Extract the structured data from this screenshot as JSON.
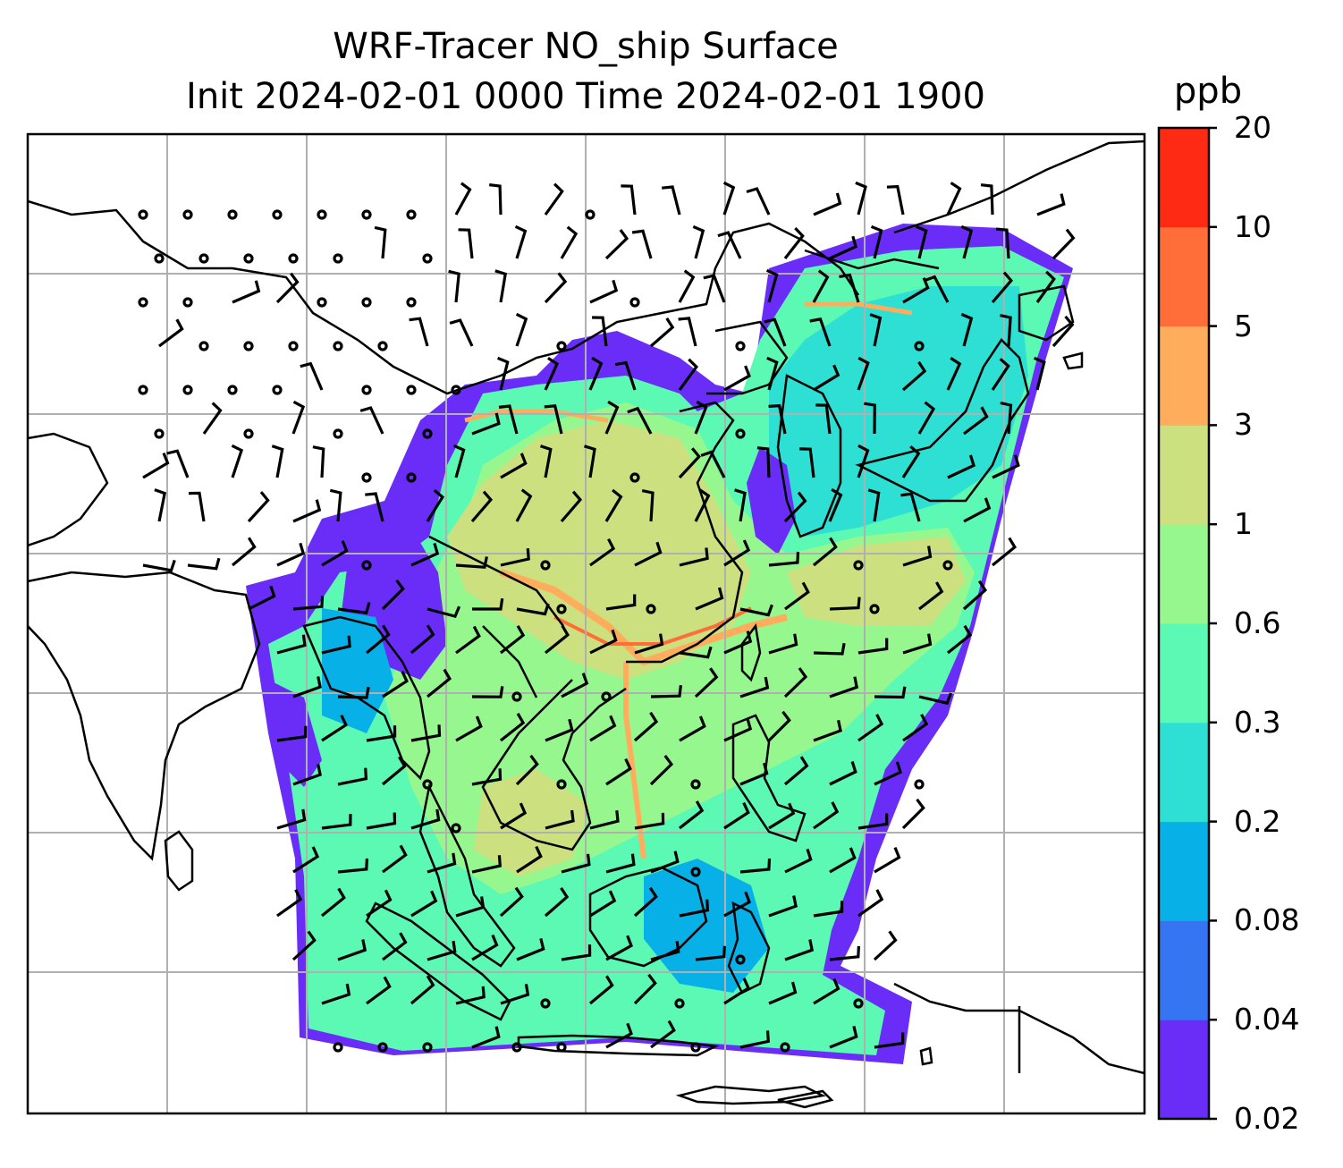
{
  "title": {
    "line1": "WRF-Tracer NO_ship Surface",
    "line2": "Init 2024-02-01 0000 Time 2024-02-01 1900"
  },
  "colorbar": {
    "unit": "ppb",
    "levels": [
      "0.02",
      "0.04",
      "0.08",
      "0.2",
      "0.3",
      "0.6",
      "1",
      "3",
      "5",
      "10",
      "20"
    ],
    "colors": [
      "#6a2df7",
      "#3575f2",
      "#07b0e6",
      "#2ee0d4",
      "#5cf9b4",
      "#97f78f",
      "#cce080",
      "#ffad5c",
      "#ff6e38",
      "#ff2a14"
    ]
  },
  "map": {
    "gridline_color": "#b0b0b0",
    "coastline_color": "#000000",
    "wind_barbs": "black"
  }
}
